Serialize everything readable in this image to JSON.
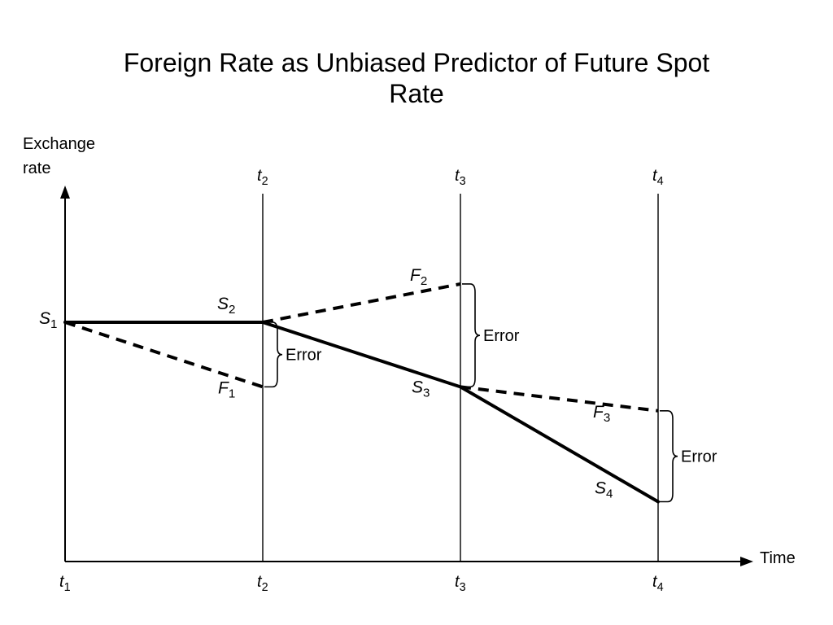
{
  "title": {
    "line1": "Foreign Rate as Unbiased Predictor of Future Spot",
    "line2": "Rate"
  },
  "axes": {
    "ylabel_line1": "Exchange",
    "ylabel_line2": "rate",
    "xlabel": "Time"
  },
  "chart_data": {
    "type": "line",
    "x_ticks": [
      {
        "id": "t1",
        "base": "t",
        "sub": "1"
      },
      {
        "id": "t2",
        "base": "t",
        "sub": "2"
      },
      {
        "id": "t3",
        "base": "t",
        "sub": "3"
      },
      {
        "id": "t4",
        "base": "t",
        "sub": "4"
      }
    ],
    "vertical_guides": [
      {
        "id": "t2",
        "base": "t",
        "sub": "2"
      },
      {
        "id": "t3",
        "base": "t",
        "sub": "3"
      },
      {
        "id": "t4",
        "base": "t",
        "sub": "4"
      }
    ],
    "spot_series": [
      {
        "label": "S",
        "sub": "1",
        "t": 1,
        "y": 100
      },
      {
        "label": "S",
        "sub": "2",
        "t": 2,
        "y": 100
      },
      {
        "label": "S",
        "sub": "3",
        "t": 3,
        "y": 73
      },
      {
        "label": "S",
        "sub": "4",
        "t": 4,
        "y": 25
      }
    ],
    "forward_segments": [
      {
        "label": "F",
        "sub": "1",
        "from_t": 1,
        "from_y": 100,
        "to_t": 2,
        "to_y": 73
      },
      {
        "label": "F",
        "sub": "2",
        "from_t": 2,
        "from_y": 100,
        "to_t": 3,
        "to_y": 116
      },
      {
        "label": "F",
        "sub": "3",
        "from_t": 3,
        "from_y": 73,
        "to_t": 4,
        "to_y": 63
      }
    ],
    "error_annotations": [
      {
        "label": "Error",
        "t": 2,
        "y_low": 73,
        "y_high": 100
      },
      {
        "label": "Error",
        "t": 3,
        "y_low": 73,
        "y_high": 116
      },
      {
        "label": "Error",
        "t": 4,
        "y_low": 25,
        "y_high": 63
      }
    ],
    "ylim": [
      0,
      150
    ],
    "xlim": [
      1,
      4.7
    ],
    "grid": false
  }
}
